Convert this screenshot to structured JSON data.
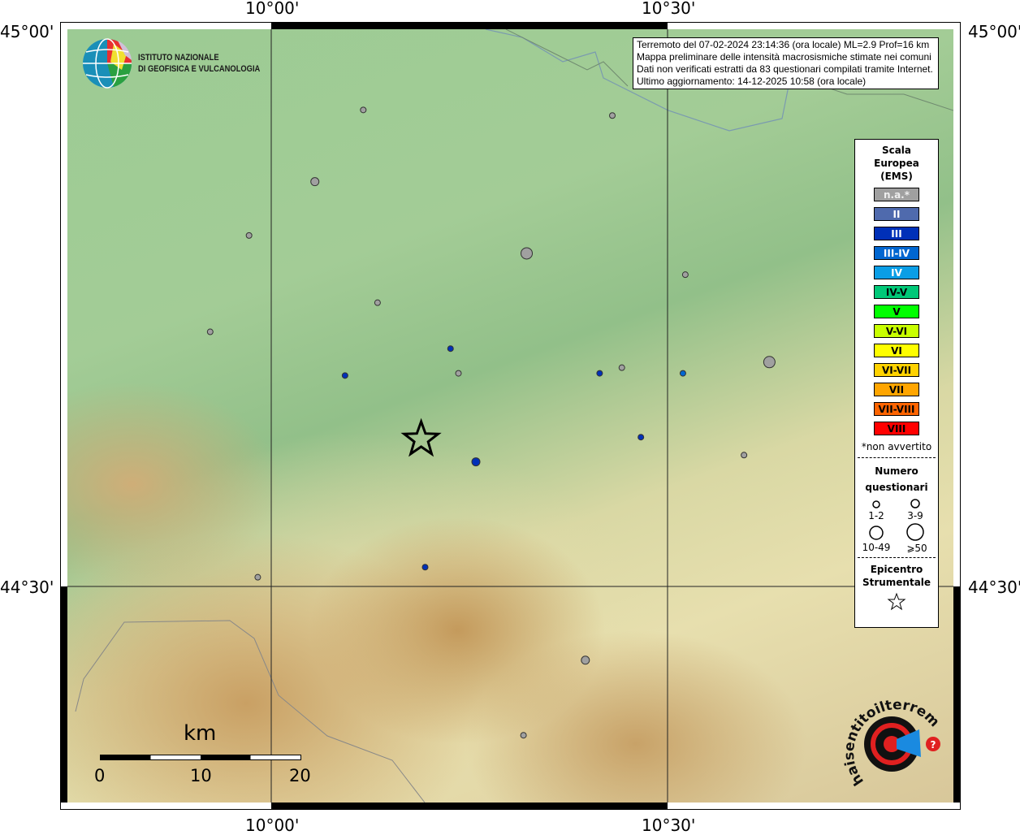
{
  "axes": {
    "top": [
      "10°00'",
      "10°30'"
    ],
    "bottom": [
      "10°00'",
      "10°30'"
    ],
    "left": [
      "45°00'",
      "44°30'"
    ],
    "right": [
      "45°00'",
      "44°30'"
    ]
  },
  "info": {
    "lines": [
      "Terremoto del 07-02-2024 23:14:36 (ora locale) ML=2.9 Prof=16 km",
      "Mappa preliminare delle intensità macrosismiche stimate nei comuni",
      "Dati non verificati estratti da 83 questionari compilati tramite Internet.",
      "Ultimo aggiornamento: 14-12-2025 10:58 (ora locale)"
    ]
  },
  "logo_ingv": {
    "line1": "ISTITUTO NAZIONALE",
    "line2": "DI GEOFISICA E VULCANOLOGIA"
  },
  "logo_hsit": "www.haisentitoilterremoto.it",
  "legend": {
    "title": [
      "Scala",
      "Europea",
      "(EMS)"
    ],
    "classes": [
      {
        "label": "n.a.*",
        "color": "#a0a0a0",
        "text": "#eeeeee"
      },
      {
        "label": "II",
        "color": "#4f6aad",
        "text": "#ffffff"
      },
      {
        "label": "III",
        "color": "#0030b8",
        "text": "#ffffff"
      },
      {
        "label": "III-IV",
        "color": "#0066d0",
        "text": "#ffffff"
      },
      {
        "label": "IV",
        "color": "#0a9ee6",
        "text": "#ffffff"
      },
      {
        "label": "IV-V",
        "color": "#00c878",
        "text": "#000000"
      },
      {
        "label": "V",
        "color": "#00ff00",
        "text": "#000000"
      },
      {
        "label": "V-VI",
        "color": "#c8ff00",
        "text": "#000000"
      },
      {
        "label": "VI",
        "color": "#ffff00",
        "text": "#000000"
      },
      {
        "label": "VI-VII",
        "color": "#ffd200",
        "text": "#000000"
      },
      {
        "label": "VII",
        "color": "#ffa500",
        "text": "#000000"
      },
      {
        "label": "VII-VIII",
        "color": "#ff6400",
        "text": "#000000"
      },
      {
        "label": "VIII",
        "color": "#ff0000",
        "text": "#000000"
      }
    ],
    "note": "*non avvertito",
    "count_title": [
      "Numero",
      "questionari"
    ],
    "counts": [
      "1-2",
      "3-9",
      "10-49",
      "⩾50"
    ],
    "epi_title": [
      "Epicentro",
      "Strumentale"
    ]
  },
  "scalebar": {
    "unit": "km",
    "ticks": [
      "0",
      "10",
      "20"
    ]
  },
  "map_extent": {
    "lon": [
      9.749,
      10.866
    ],
    "lat": [
      44.31,
      45.0
    ]
  },
  "epicenter": {
    "lon": 10.195,
    "lat": 44.634
  },
  "points": [
    {
      "lon": 10.122,
      "lat": 44.928,
      "cls": "n.a.*",
      "n": "1-2"
    },
    {
      "lon": 10.436,
      "lat": 44.923,
      "cls": "n.a.*",
      "n": "1-2"
    },
    {
      "lon": 10.061,
      "lat": 44.864,
      "cls": "n.a.*",
      "n": "3-9"
    },
    {
      "lon": 9.978,
      "lat": 44.816,
      "cls": "n.a.*",
      "n": "1-2"
    },
    {
      "lon": 10.328,
      "lat": 44.8,
      "cls": "n.a.*",
      "n": "10-49"
    },
    {
      "lon": 10.528,
      "lat": 44.781,
      "cls": "n.a.*",
      "n": "1-2"
    },
    {
      "lon": 10.14,
      "lat": 44.756,
      "cls": "n.a.*",
      "n": "1-2"
    },
    {
      "lon": 9.929,
      "lat": 44.73,
      "cls": "n.a.*",
      "n": "1-2"
    },
    {
      "lon": 10.232,
      "lat": 44.715,
      "cls": "III",
      "n": "1-2"
    },
    {
      "lon": 10.099,
      "lat": 44.691,
      "cls": "III",
      "n": "1-2"
    },
    {
      "lon": 10.242,
      "lat": 44.693,
      "cls": "n.a.*",
      "n": "1-2"
    },
    {
      "lon": 10.42,
      "lat": 44.693,
      "cls": "III",
      "n": "1-2"
    },
    {
      "lon": 10.448,
      "lat": 44.698,
      "cls": "n.a.*",
      "n": "1-2"
    },
    {
      "lon": 10.525,
      "lat": 44.693,
      "cls": "III-IV",
      "n": "1-2"
    },
    {
      "lon": 10.634,
      "lat": 44.703,
      "cls": "n.a.*",
      "n": "10-49"
    },
    {
      "lon": 10.472,
      "lat": 44.636,
      "cls": "III",
      "n": "1-2"
    },
    {
      "lon": 10.602,
      "lat": 44.62,
      "cls": "n.a.*",
      "n": "1-2"
    },
    {
      "lon": 10.264,
      "lat": 44.614,
      "cls": "III",
      "n": "3-9"
    },
    {
      "lon": 10.2,
      "lat": 44.52,
      "cls": "III",
      "n": "1-2"
    },
    {
      "lon": 9.989,
      "lat": 44.511,
      "cls": "n.a.*",
      "n": "1-2"
    },
    {
      "lon": 10.402,
      "lat": 44.437,
      "cls": "n.a.*",
      "n": "3-9"
    },
    {
      "lon": 10.324,
      "lat": 44.37,
      "cls": "n.a.*",
      "n": "1-2"
    }
  ]
}
